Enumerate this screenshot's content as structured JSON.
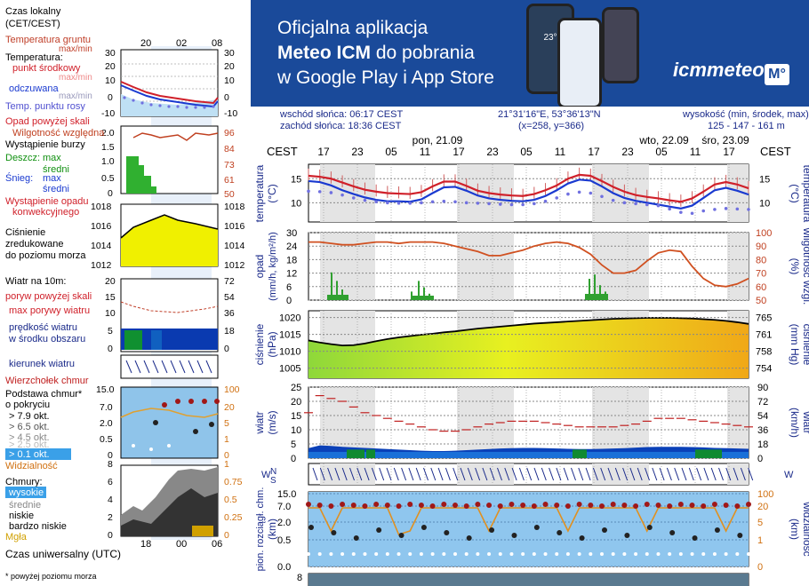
{
  "banner": {
    "line1": "Oficjalna aplikacja",
    "line2_bold": "Meteo ICM",
    "line2_rest": " do pobrania",
    "line3": "w Google Play i App Store",
    "logo": "icmmeteo",
    "logo_badge": "M°",
    "phone_temp": "23°"
  },
  "info": {
    "sunrise": "wschód słońca: 06:17 CEST",
    "sunset": "zachód słońca: 18:36 CEST",
    "coords": "21°31'16\"E, 53°36'13\"N",
    "grid": "(x=258,  y=366)",
    "elev_label": "wysokość (min, środek, max)",
    "elev_values": "125 - 147 - 161 m"
  },
  "legend": {
    "tz": "Czas lokalny",
    "tz2": "(CET/CEST)",
    "ground": "Temperatura gruntu",
    "ground2": "max/min",
    "temperature": "Temperatura:",
    "mid": "punkt środkowy",
    "mid2": "max/min",
    "felt": "odczuwana",
    "felt2": "max/min",
    "dew": "Temp. punktu rosy",
    "precip_over": "Opad powyżej skali",
    "rh": "Wilgotność względna",
    "storm": "Wystąpienie burzy",
    "rain": "Deszcz:",
    "rain_max": "max",
    "rain_mean": "średni",
    "snow": "Śnieg:",
    "snow_max": "max",
    "snow_mean": "średni",
    "precip_occ": "Wystąpienie opadu",
    "conv": "konwekcyjnego",
    "pressure1": "Ciśnienie",
    "pressure2": "zredukowane",
    "pressure3": "do poziomu morza",
    "wind_at": "Wiatr na 10m:",
    "gust_over": "poryw powyżej skali",
    "gust_max": "max porywy wiatru",
    "wind_speed": "prędkość wiatru",
    "wind_area": "w środku obszaru",
    "wind_dir": "kierunek wiatru",
    "cloud_top": "Wierzchołek chmur",
    "cloud_base": "Podstawa chmur*",
    "coverage": "o pokryciu",
    "okt79": "> 7.9 okt.",
    "okt65": "> 6.5 okt.",
    "okt45": "> 4.5 okt.",
    "okt25": "> 2.5 okt.",
    "okt01": "> 0.1 okt.",
    "visibility": "Widzialność",
    "clouds": "Chmury:",
    "high": "wysokie",
    "mid_c": "średnie",
    "low": "niskie",
    "very_low": "bardzo niskie",
    "fog": "Mgła",
    "utc": "Czas uniwersalny (UTC)",
    "footnote": "* powyżej poziomu morza",
    "top_times": [
      "20",
      "02",
      "08"
    ],
    "bottom_times": [
      "18",
      "00",
      "06"
    ],
    "ticks_temp": [
      "30",
      "20",
      "10",
      "0",
      "-10"
    ],
    "ticks_rh": [
      "2.0",
      "1.5",
      "1.0",
      "0.5",
      "0"
    ],
    "ticks_rh_r": [
      "96",
      "84",
      "73",
      "61",
      "50"
    ],
    "ticks_p": [
      "1018",
      "1016",
      "1014",
      "1012"
    ],
    "ticks_w": [
      "20",
      "15",
      "10",
      "5",
      "0"
    ],
    "ticks_w_r": [
      "72",
      "54",
      "36",
      "18",
      "0"
    ],
    "ticks_cb": [
      "15.0",
      "7.0",
      "2.0",
      "0.5",
      "0"
    ],
    "ticks_cb_r": [
      "100",
      "20",
      "5",
      "1",
      "0"
    ],
    "ticks_cl": [
      "8",
      "6",
      "4",
      "2",
      "0"
    ],
    "ticks_cl_r": [
      "1",
      "0.75",
      "0.5",
      "0.25",
      "0"
    ]
  },
  "chart_data": {
    "type": "line",
    "days": [
      "pon, 21.09",
      "wto, 22.09",
      "śro, 23.09"
    ],
    "x_ticks": [
      "17",
      "23",
      "05",
      "11",
      "17",
      "23",
      "05",
      "11",
      "17",
      "23",
      "05",
      "11",
      "17"
    ],
    "tz_label": "CEST",
    "panels": {
      "temperature": {
        "ylabel": "temperatura (°C)",
        "yticks": [
          10,
          15
        ],
        "ylim": [
          6,
          18
        ],
        "series": [
          {
            "name": "punkt środkowy",
            "color": "#d0202a",
            "values": [
              15.6,
              15.4,
              15.0,
              14.2,
              13.4,
              12.7,
              12.3,
              12.0,
              11.9,
              11.8,
              12.2,
              13.4,
              14.4,
              14.4,
              13.5,
              12.5,
              12.0,
              11.7,
              11.5,
              11.4,
              11.8,
              12.6,
              13.6,
              15.0,
              15.8,
              15.6,
              14.5,
              13.3,
              12.3,
              11.6,
              11.2,
              10.9,
              10.5,
              10.2,
              10.9,
              12.3,
              13.8,
              14.3,
              13.8,
              13.0
            ]
          },
          {
            "name": "odczuwana",
            "color": "#1a3ad0",
            "values": [
              14.5,
              14.3,
              13.6,
              12.6,
              11.8,
              11.1,
              10.6,
              10.3,
              10.3,
              10.2,
              10.7,
              12.0,
              13.2,
              13.3,
              12.5,
              11.5,
              10.9,
              10.6,
              10.4,
              10.3,
              10.6,
              11.4,
              12.6,
              14.0,
              14.8,
              14.6,
              13.4,
              12.0,
              11.0,
              10.4,
              10.0,
              9.6,
              9.2,
              8.8,
              9.4,
              11.0,
              12.6,
              13.1,
              12.5,
              11.7
            ]
          },
          {
            "name": "Temp. punktu rosy",
            "color": "#7070e0",
            "values": [
              12.4,
              12.3,
              12.1,
              11.6,
              11.0,
              10.5,
              10.2,
              10.0,
              9.9,
              9.9,
              10.0,
              10.2,
              10.3,
              10.2,
              10.0,
              9.9,
              9.8,
              9.7,
              9.6,
              9.6,
              9.8,
              10.3,
              11.0,
              11.8,
              12.2,
              12.0,
              11.3,
              10.5,
              10.0,
              9.8,
              9.6,
              9.4,
              8.7,
              8.0,
              7.8,
              8.3,
              8.6,
              8.8,
              8.7,
              8.6
            ]
          }
        ]
      },
      "precipitation": {
        "ylabel": "opad (mm/h, kg/m²/h)",
        "yticks": [
          0,
          6,
          12,
          18,
          24,
          30
        ],
        "y2label": "wilgotność wzgl. (%)",
        "y2ticks": [
          50,
          60,
          70,
          80,
          90,
          100
        ],
        "rh": [
          93,
          93,
          92,
          91,
          91,
          92,
          93,
          93,
          92,
          93,
          93,
          93,
          92,
          90,
          88,
          86,
          83,
          83,
          85,
          87,
          90,
          92,
          93,
          92,
          89,
          84,
          76,
          70,
          70,
          72,
          79,
          85,
          87,
          86,
          75,
          66,
          61,
          60,
          62,
          66
        ]
      },
      "pressure": {
        "ylabel": "ciśnienie (hPa)",
        "yticks": [
          1005,
          1010,
          1015,
          1020
        ],
        "y2label": "ciśnienie (mm Hg)",
        "y2ticks": [
          754,
          758,
          761,
          765
        ],
        "values": [
          1013.2,
          1012.6,
          1012.1,
          1011.7,
          1011.8,
          1012.3,
          1013.0,
          1013.6,
          1014.1,
          1014.5,
          1014.9,
          1015.2,
          1015.6,
          1015.9,
          1016.3,
          1016.7,
          1017.0,
          1017.3,
          1017.6,
          1017.9,
          1018.2,
          1018.4,
          1018.6,
          1018.8,
          1019.0,
          1019.2,
          1019.4,
          1019.6,
          1019.7,
          1019.8,
          1019.9,
          1019.9,
          1019.9,
          1019.8,
          1019.7,
          1019.5,
          1019.3,
          1019.0,
          1018.6,
          1018.1
        ]
      },
      "wind": {
        "ylabel": "wiatr (m/s)",
        "yticks": [
          0,
          5,
          10,
          15,
          20,
          25
        ],
        "y2label": "wiatr (km/h)",
        "y2ticks": [
          0,
          18,
          36,
          54,
          72,
          90
        ],
        "gust_max": [
          16,
          22,
          21,
          20,
          18,
          16,
          15,
          14,
          13,
          12,
          11,
          10,
          9.5,
          9.5,
          10,
          11,
          12,
          12.5,
          13,
          13,
          13,
          12.5,
          12,
          11.5,
          11,
          11,
          11,
          11,
          11.5,
          12,
          13,
          14,
          14,
          14,
          13.5,
          13,
          12.5,
          12,
          11.5,
          11
        ],
        "speed": [
          3.5,
          4.5,
          4.3,
          4.0,
          3.8,
          3.6,
          3.4,
          3.2,
          3.0,
          2.8,
          2.6,
          2.5,
          2.5,
          2.6,
          2.8,
          3.0,
          3.2,
          3.4,
          3.5,
          3.6,
          3.6,
          3.5,
          3.4,
          3.3,
          3.2,
          3.2,
          3.3,
          3.4,
          3.5,
          3.7,
          3.9,
          4.0,
          4.0,
          4.0,
          3.9,
          3.8,
          3.6,
          3.5,
          3.4,
          3.3
        ]
      },
      "cloud_base": {
        "ylabel": "pion. rozciągł. chm. (km)",
        "yticks": [
          0,
          0.5,
          2.0,
          7.0,
          15.0
        ],
        "y2label": "widzialność (km)",
        "y2ticks": [
          0,
          1,
          5,
          20,
          100
        ]
      },
      "clouds": {
        "yticks": [
          8
        ]
      }
    }
  }
}
